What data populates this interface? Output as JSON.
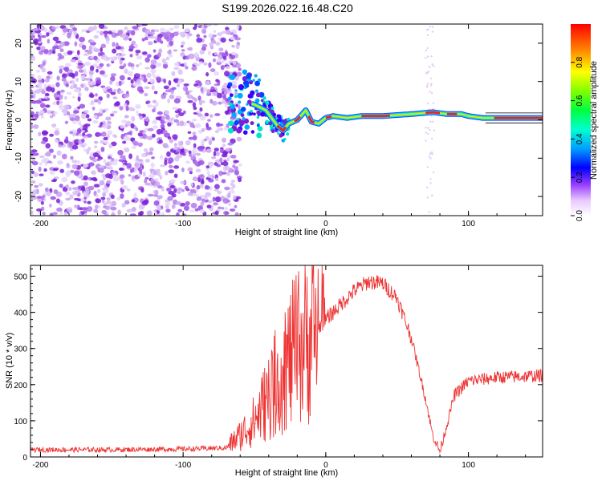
{
  "title": "S199.2026.022.16.48.C20",
  "chart_data": [
    {
      "type": "heatmap",
      "name": "spectrogram",
      "xlabel": "Height of straight line (km)",
      "ylabel": "Frequency (Hz)",
      "xlim": [
        -207,
        152
      ],
      "ylim": [
        -25,
        25
      ],
      "xticks": [
        -200,
        -100,
        0,
        100
      ],
      "yticks": [
        -20,
        -10,
        0,
        10,
        20
      ],
      "colorbar": {
        "label": "Normalized spectral amplitude",
        "range": [
          0,
          1
        ],
        "ticks": [
          0.0,
          0.2,
          0.4,
          0.6,
          0.8
        ]
      },
      "noise_region_km": [
        -207,
        -68
      ],
      "signal_track": {
        "x": [
          -60,
          -50,
          -42,
          -34,
          -30,
          -26,
          -20,
          -14,
          -10,
          -5,
          0,
          5,
          15,
          25,
          40,
          60,
          75,
          85,
          95,
          100,
          110,
          115,
          130,
          152
        ],
        "y": [
          5,
          4,
          2.5,
          -1.5,
          -2.8,
          -1.0,
          0,
          2.5,
          -0.5,
          -1.0,
          0.5,
          1.0,
          0.5,
          1.0,
          1.0,
          1.5,
          2.0,
          1.5,
          1.5,
          1.0,
          0.5,
          0.5,
          0.5,
          0.5
        ]
      }
    },
    {
      "type": "line",
      "name": "snr",
      "xlabel": "Height of straight line (km)",
      "ylabel": "SNR (10 * v/v)",
      "xlim": [
        -207,
        152
      ],
      "ylim": [
        0,
        530
      ],
      "xticks": [
        -200,
        -100,
        0,
        100
      ],
      "yticks": [
        0,
        100,
        200,
        300,
        400,
        500
      ],
      "series": [
        {
          "name": "SNR",
          "color": "#ee3333",
          "x": [
            -207,
            -150,
            -100,
            -70,
            -60,
            -50,
            -40,
            -30,
            -20,
            -10,
            0,
            10,
            20,
            30,
            40,
            50,
            60,
            70,
            75,
            80,
            85,
            90,
            100,
            120,
            152
          ],
          "y": [
            20,
            20,
            22,
            25,
            60,
            100,
            170,
            240,
            300,
            340,
            380,
            420,
            460,
            485,
            480,
            440,
            330,
            160,
            60,
            15,
            90,
            170,
            210,
            220,
            225
          ]
        }
      ]
    }
  ],
  "colors": {
    "spectro_red": "#ee2222",
    "spectro_purple": "#7a1fd6",
    "snr_line": "#ee3333"
  }
}
